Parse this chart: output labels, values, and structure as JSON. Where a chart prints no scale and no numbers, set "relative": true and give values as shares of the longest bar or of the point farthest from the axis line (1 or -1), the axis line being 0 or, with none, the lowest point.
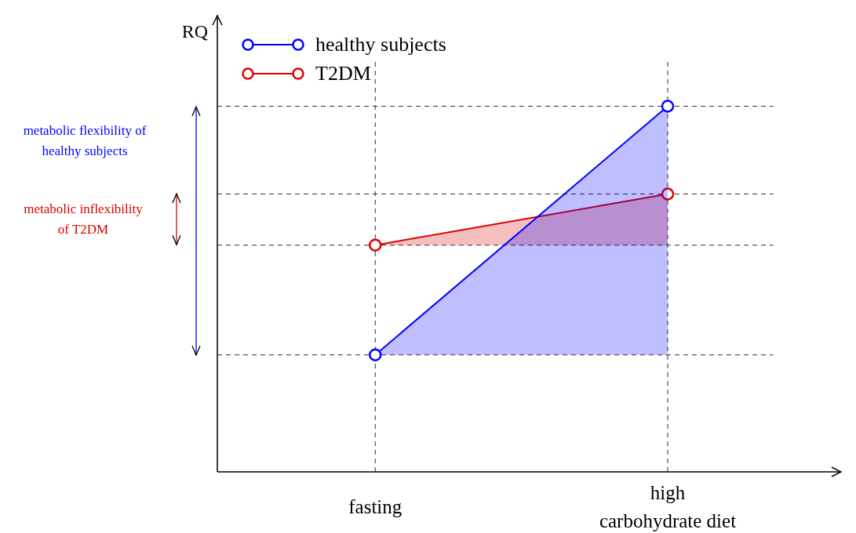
{
  "chart_data": {
    "type": "area",
    "ylabel": "RQ",
    "relative": true,
    "categories": [
      "fasting",
      "high\ncarbohydrate diet"
    ],
    "series": [
      {
        "name": "healthy subjects",
        "color": "#0000ff",
        "values": [
          0.32,
          1
        ]
      },
      {
        "name": "T2DM",
        "color": "#dd0000",
        "values": [
          0.62,
          0.76
        ]
      }
    ],
    "annotations": [
      "metabolic flexibility of healthy subjects",
      "metabolic inflexibility of T2DM"
    ],
    "grid": true,
    "legend": "top left",
    "marker": "circle",
    "line_style": "solid"
  }
}
